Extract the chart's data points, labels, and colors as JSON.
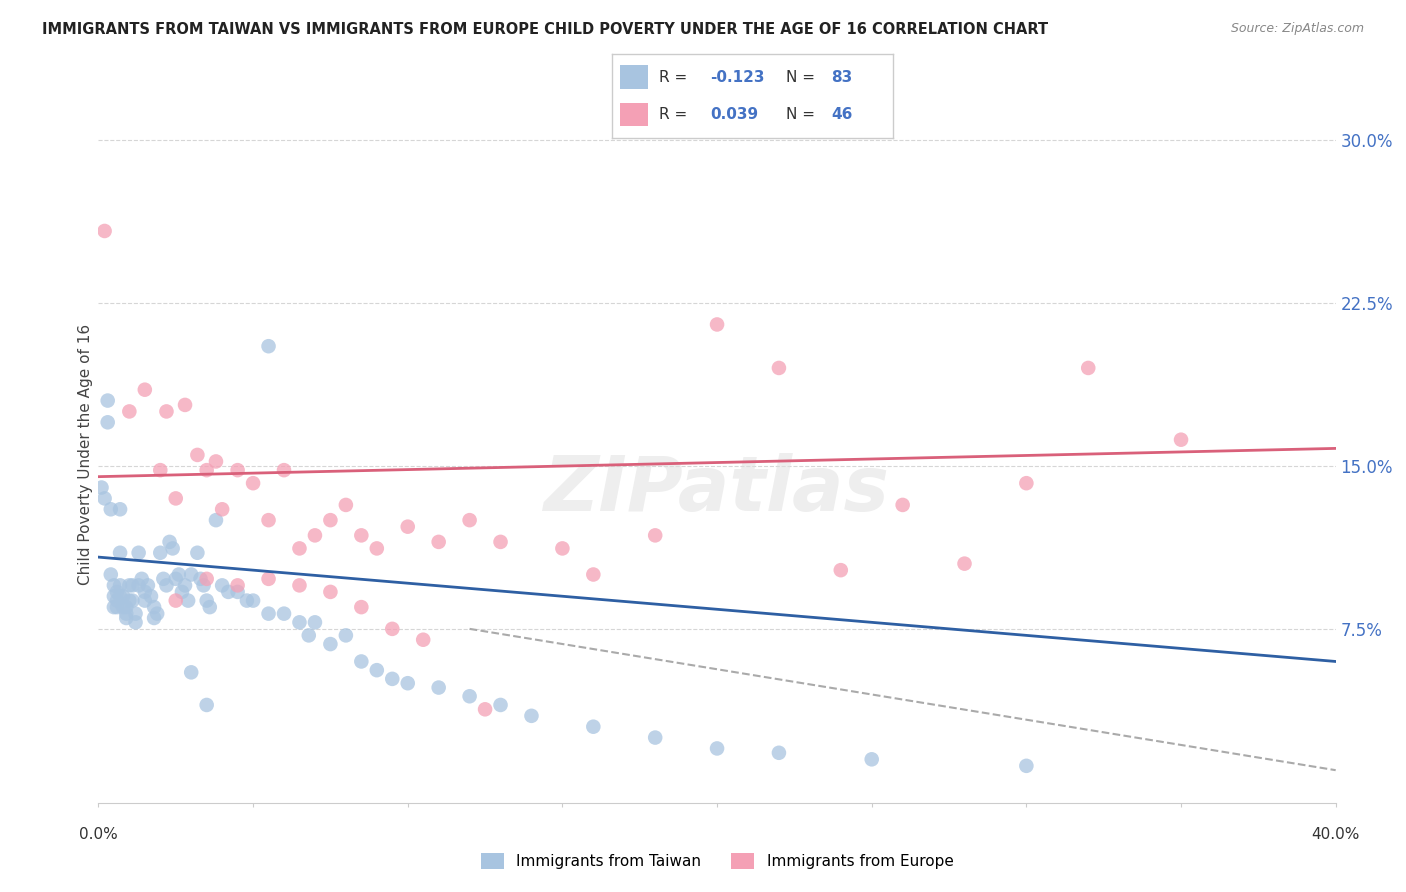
{
  "title": "IMMIGRANTS FROM TAIWAN VS IMMIGRANTS FROM EUROPE CHILD POVERTY UNDER THE AGE OF 16 CORRELATION CHART",
  "source": "Source: ZipAtlas.com",
  "ylabel": "Child Poverty Under the Age of 16",
  "xlim": [
    0.0,
    0.4
  ],
  "ylim": [
    -0.005,
    0.315
  ],
  "taiwan_color": "#a8c4e0",
  "europe_color": "#f4a0b5",
  "taiwan_line_color": "#2e5fa3",
  "europe_line_color": "#d9607a",
  "taiwan_R": -0.123,
  "taiwan_N": 83,
  "europe_R": 0.039,
  "europe_N": 46,
  "taiwan_trendline": [
    0.0,
    0.4,
    0.108,
    0.06
  ],
  "europe_trendline": [
    0.0,
    0.4,
    0.145,
    0.158
  ],
  "dashed_line": [
    0.12,
    0.4,
    0.075,
    0.01
  ],
  "taiwan_x": [
    0.001,
    0.002,
    0.003,
    0.003,
    0.004,
    0.004,
    0.005,
    0.005,
    0.005,
    0.006,
    0.006,
    0.006,
    0.007,
    0.007,
    0.007,
    0.007,
    0.008,
    0.008,
    0.009,
    0.009,
    0.009,
    0.01,
    0.01,
    0.011,
    0.011,
    0.012,
    0.012,
    0.013,
    0.013,
    0.014,
    0.015,
    0.015,
    0.016,
    0.017,
    0.018,
    0.018,
    0.019,
    0.02,
    0.021,
    0.022,
    0.023,
    0.024,
    0.025,
    0.026,
    0.027,
    0.028,
    0.029,
    0.03,
    0.032,
    0.033,
    0.034,
    0.035,
    0.036,
    0.038,
    0.04,
    0.042,
    0.045,
    0.048,
    0.05,
    0.055,
    0.06,
    0.065,
    0.068,
    0.07,
    0.075,
    0.08,
    0.085,
    0.09,
    0.095,
    0.1,
    0.11,
    0.12,
    0.13,
    0.14,
    0.16,
    0.18,
    0.2,
    0.22,
    0.25,
    0.3,
    0.03,
    0.035,
    0.055
  ],
  "taiwan_y": [
    0.14,
    0.135,
    0.18,
    0.17,
    0.13,
    0.1,
    0.095,
    0.09,
    0.085,
    0.092,
    0.088,
    0.085,
    0.13,
    0.11,
    0.095,
    0.09,
    0.09,
    0.085,
    0.085,
    0.082,
    0.08,
    0.095,
    0.088,
    0.095,
    0.088,
    0.082,
    0.078,
    0.095,
    0.11,
    0.098,
    0.092,
    0.088,
    0.095,
    0.09,
    0.085,
    0.08,
    0.082,
    0.11,
    0.098,
    0.095,
    0.115,
    0.112,
    0.098,
    0.1,
    0.092,
    0.095,
    0.088,
    0.1,
    0.11,
    0.098,
    0.095,
    0.088,
    0.085,
    0.125,
    0.095,
    0.092,
    0.092,
    0.088,
    0.088,
    0.082,
    0.082,
    0.078,
    0.072,
    0.078,
    0.068,
    0.072,
    0.06,
    0.056,
    0.052,
    0.05,
    0.048,
    0.044,
    0.04,
    0.035,
    0.03,
    0.025,
    0.02,
    0.018,
    0.015,
    0.012,
    0.055,
    0.04,
    0.205
  ],
  "europe_x": [
    0.002,
    0.01,
    0.015,
    0.02,
    0.022,
    0.025,
    0.028,
    0.032,
    0.035,
    0.038,
    0.04,
    0.045,
    0.05,
    0.055,
    0.06,
    0.065,
    0.07,
    0.075,
    0.08,
    0.085,
    0.09,
    0.1,
    0.11,
    0.12,
    0.13,
    0.15,
    0.16,
    0.18,
    0.2,
    0.22,
    0.24,
    0.26,
    0.28,
    0.3,
    0.32,
    0.35,
    0.025,
    0.035,
    0.045,
    0.055,
    0.065,
    0.075,
    0.085,
    0.095,
    0.105,
    0.125
  ],
  "europe_y": [
    0.258,
    0.175,
    0.185,
    0.148,
    0.175,
    0.135,
    0.178,
    0.155,
    0.148,
    0.152,
    0.13,
    0.148,
    0.142,
    0.125,
    0.148,
    0.112,
    0.118,
    0.125,
    0.132,
    0.118,
    0.112,
    0.122,
    0.115,
    0.125,
    0.115,
    0.112,
    0.1,
    0.118,
    0.215,
    0.195,
    0.102,
    0.132,
    0.105,
    0.142,
    0.195,
    0.162,
    0.088,
    0.098,
    0.095,
    0.098,
    0.095,
    0.092,
    0.085,
    0.075,
    0.07,
    0.038
  ],
  "watermark": "ZIPatlas",
  "bg_color": "#ffffff",
  "grid_color": "#cccccc"
}
